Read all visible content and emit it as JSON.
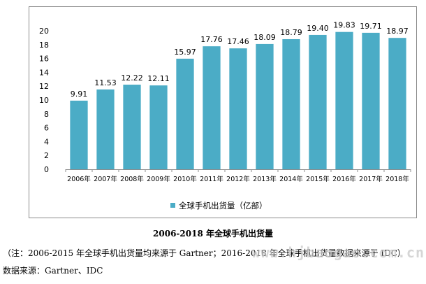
{
  "colors": {
    "bar": "#4bacc6",
    "axis": "#8c8c8c"
  },
  "chart_data": {
    "type": "bar",
    "categories": [
      "2006年",
      "2007年",
      "2008年",
      "2009年",
      "2010年",
      "2011年",
      "2012年",
      "2013年",
      "2014年",
      "2015年",
      "2016年",
      "2017年",
      "2018年"
    ],
    "series": [
      {
        "name": "全球手机出货量（亿部）",
        "values": [
          9.91,
          11.53,
          12.22,
          12.11,
          15.97,
          17.76,
          17.46,
          18.09,
          18.79,
          19.4,
          19.83,
          19.71,
          18.97
        ],
        "labels": [
          "9.91",
          "11.53",
          "12.22",
          "12.11",
          "15.97",
          "17.76",
          "17.46",
          "18.09",
          "18.79",
          "19.40",
          "19.83",
          "19.71",
          "18.97"
        ]
      }
    ],
    "y_ticks": [
      "0",
      "2",
      "4",
      "6",
      "8",
      "10",
      "12",
      "14",
      "16",
      "18",
      "20"
    ],
    "ylim": [
      0,
      20
    ],
    "grid": false,
    "legend_position": "bottom"
  },
  "caption": {
    "title": "2006-2018 年全球手机出货量",
    "note": "（注：2006-2015 年全球手机出货量均来源于 Gartner；2016-2018 年全球手机出货量数据来源于 IDC）",
    "source": "数据来源：Gartner、IDC"
  },
  "watermark": "www.hjbaogao.com.cn"
}
